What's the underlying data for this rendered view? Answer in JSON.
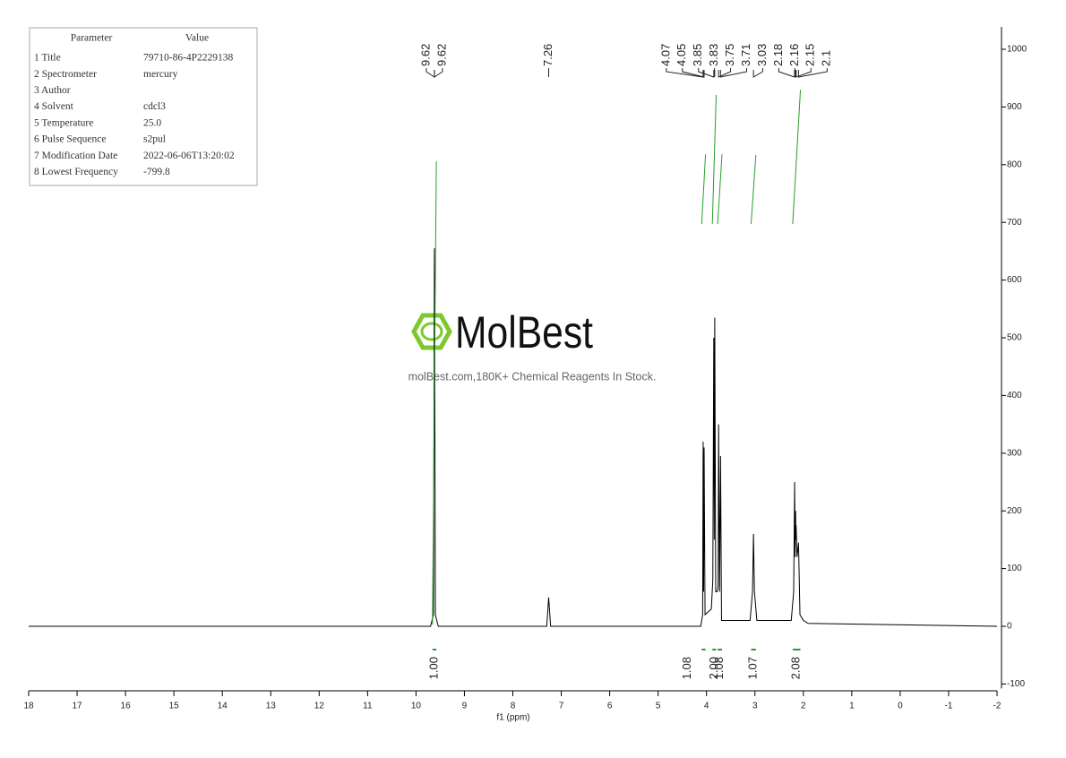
{
  "parameters": {
    "headers": [
      "Parameter",
      "Value"
    ],
    "rows": [
      [
        "1 Title",
        "79710-86-4P2229138"
      ],
      [
        "2 Spectrometer",
        "mercury"
      ],
      [
        "3 Author",
        ""
      ],
      [
        "4 Solvent",
        "cdcl3"
      ],
      [
        "5 Temperature",
        "25.0"
      ],
      [
        "6 Pulse Sequence",
        "s2pul"
      ],
      [
        "7 Modification Date",
        "2022-06-06T13:20:02"
      ],
      [
        "8 Lowest Frequency",
        "-799.8"
      ]
    ]
  },
  "watermark": {
    "logo": "MolBest",
    "tagline": "molBest.com,180K+ Chemical Reagents In Stock."
  },
  "chart_data": {
    "type": "nmr",
    "x_label": "f1 (ppm)",
    "color": "#000000",
    "integral_color": "#2a9d2a",
    "xlim": [
      18,
      -2
    ],
    "xticks": [
      18,
      17,
      16,
      15,
      14,
      13,
      12,
      11,
      10,
      9,
      8,
      7,
      6,
      5,
      4,
      3,
      2,
      1,
      0,
      -1,
      -2
    ],
    "ylim": [
      -100,
      1000
    ],
    "yticks": [
      -100,
      0,
      100,
      200,
      300,
      400,
      500,
      600,
      700,
      800,
      900,
      1000
    ],
    "x": [
      18,
      9.7,
      9.64,
      9.62,
      9.6,
      9.54,
      7.3,
      7.26,
      7.22,
      4.12,
      4.08,
      4.07,
      4.06,
      4.05,
      4.03,
      3.9,
      3.87,
      3.85,
      3.84,
      3.83,
      3.81,
      3.78,
      3.76,
      3.75,
      3.73,
      3.71,
      3.69,
      3.1,
      3.05,
      3.03,
      3.01,
      2.96,
      2.25,
      2.2,
      2.18,
      2.17,
      2.16,
      2.155,
      2.15,
      2.13,
      2.1,
      2.07,
      2.0,
      1.9,
      -2
    ],
    "values": [
      0,
      0,
      20,
      655,
      20,
      0,
      0,
      50,
      0,
      0,
      20,
      320,
      60,
      310,
      20,
      30,
      80,
      500,
      150,
      535,
      60,
      60,
      70,
      350,
      60,
      295,
      10,
      10,
      60,
      160,
      60,
      10,
      10,
      60,
      250,
      120,
      200,
      150,
      175,
      120,
      145,
      20,
      10,
      5,
      0
    ],
    "peaks": [
      9.62,
      9.62,
      7.26,
      4.07,
      4.05,
      3.85,
      3.83,
      3.75,
      3.71,
      3.03,
      2.18,
      2.16,
      2.15,
      2.1
    ],
    "integrals": [
      {
        "from": 9.66,
        "to": 9.58,
        "value": 1,
        "label": "1.00"
      },
      {
        "from": 4.1,
        "to": 4.02,
        "value": 1.08,
        "label": "1.08"
      },
      {
        "from": 3.88,
        "to": 3.8,
        "value": 2,
        "label": "2.00"
      },
      {
        "from": 3.77,
        "to": 3.68,
        "value": 1.08,
        "label": "1.08"
      },
      {
        "from": 3.08,
        "to": 2.98,
        "value": 1.07,
        "label": "1.07"
      },
      {
        "from": 2.22,
        "to": 2.06,
        "value": 2.08,
        "label": "2.08"
      }
    ]
  }
}
